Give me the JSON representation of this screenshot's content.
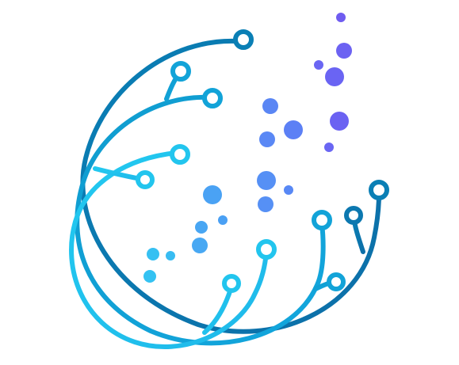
{
  "logo": {
    "name": "circuit-arc-logo",
    "colors": {
      "outer_arc": "#0a7fb5",
      "middle_arc": "#12a9dc",
      "inner_arc": "#22c8ef",
      "dot_blue": "#4a9df5",
      "dot_indigo": "#5f7cf6",
      "dot_violet": "#6f5cf0",
      "dot_cyan": "#33c3f2"
    }
  }
}
